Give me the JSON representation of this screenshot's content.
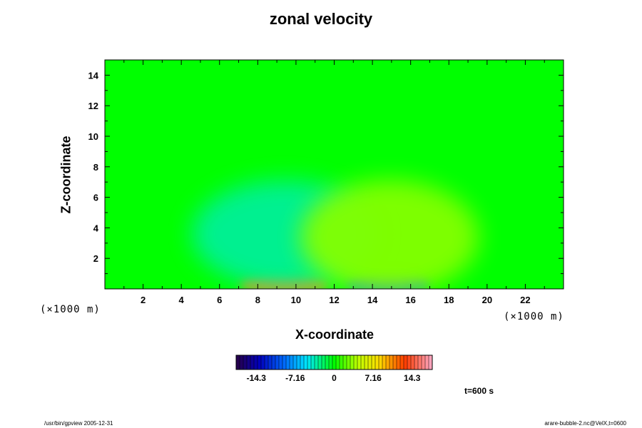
{
  "chart_data": {
    "type": "heatmap",
    "title": "zonal velocity",
    "xlabel": "X-coordinate",
    "ylabel": "Z-coordinate",
    "x_scale_note": "(×1000 m)",
    "z_scale_note": "(×1000 m)",
    "xlim": [
      0,
      24
    ],
    "ylim": [
      0,
      15
    ],
    "x_ticks": [
      "2",
      "4",
      "6",
      "8",
      "10",
      "12",
      "14",
      "16",
      "18",
      "20",
      "22"
    ],
    "y_ticks": [
      "2",
      "4",
      "6",
      "8",
      "10",
      "12",
      "14"
    ],
    "colorbar": {
      "min": -18,
      "max": 18,
      "ticks": [
        "-14.3",
        "-7.16",
        "0",
        "7.16",
        "14.3"
      ],
      "tick_values": [
        -14.3,
        -7.16,
        0,
        7.16,
        14.3
      ]
    },
    "features": [
      {
        "x": 9.4,
        "z": 0.3,
        "value": 10.5
      },
      {
        "x": 14.8,
        "z": 0.4,
        "value": -8.5
      },
      {
        "x": 9.4,
        "z": 3.6,
        "value": -3.0
      },
      {
        "x": 14.9,
        "z": 3.4,
        "value": 3.0
      }
    ],
    "time_label": "t=600 s",
    "grid": false
  },
  "footer": {
    "left": "/usr/bin/gpview 2005-12-31",
    "right": "arare-bubble-2.nc@VelX,t=0600"
  }
}
